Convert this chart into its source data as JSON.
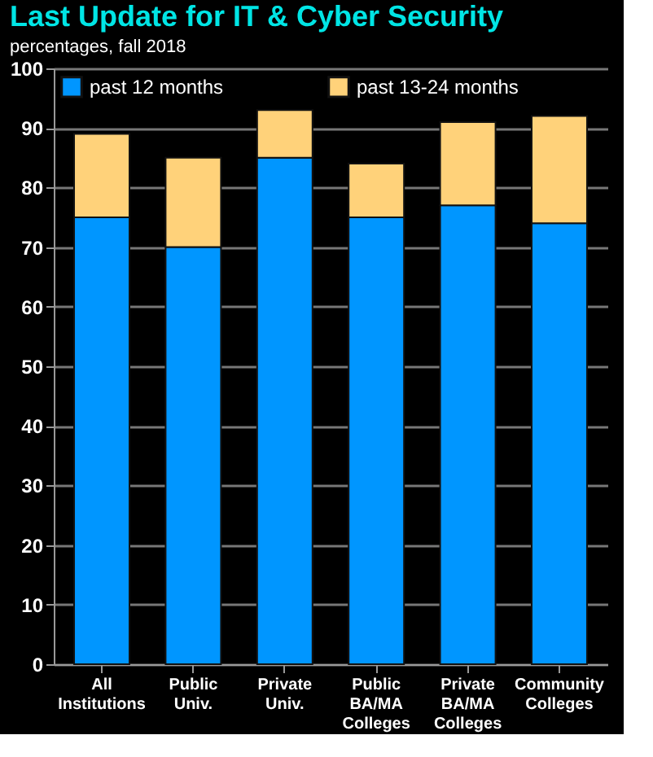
{
  "chart_data": {
    "type": "bar",
    "title": "Last Update for IT & Cyber Security",
    "subtitle": "percentages, fall 2018",
    "categories": [
      "All\nInstitutions",
      "Public\nUniv.",
      "Private\nUniv.",
      "Public\nBA/MA\nColleges",
      "Private\nBA/MA\nColleges",
      "Community\nColleges"
    ],
    "stacked": true,
    "series": [
      {
        "name": "past 12 months",
        "color": "#0096ff",
        "values": [
          75,
          70,
          85,
          75,
          77,
          74
        ]
      },
      {
        "name": "past 13-24 months",
        "color": "#ffd27a",
        "values": [
          14,
          15,
          8,
          9,
          14,
          18
        ]
      }
    ],
    "ylim": [
      0,
      100
    ],
    "yticks": [
      0,
      10,
      20,
      30,
      40,
      50,
      60,
      70,
      80,
      90,
      100
    ],
    "grid": "y",
    "legend": "top"
  }
}
